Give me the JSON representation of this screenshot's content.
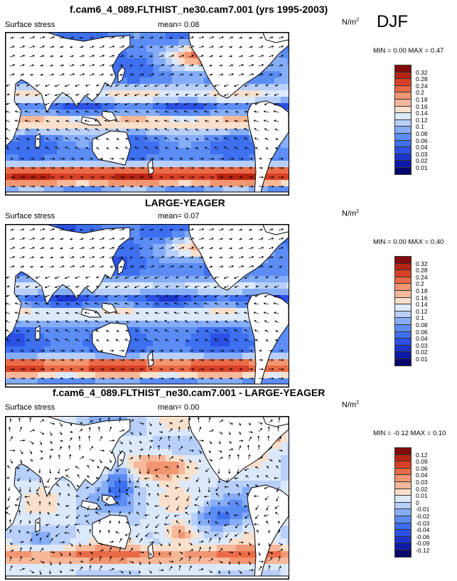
{
  "page": {
    "season": "DJF"
  },
  "chart_data": [
    {
      "type": "heatmap",
      "title": "f.cam6_4_089.FLTHIST_ne30.cam7.001 (yrs 1995-2003)",
      "variable": "Surface stress",
      "mean": "mean=  0.08",
      "units": "N/m",
      "units_exp": "2",
      "minmax": "MIN =  0.00 MAX =  0.47",
      "levels": [
        "0.01",
        "0.02",
        "0.03",
        "0.04",
        "0.06",
        "0.08",
        "0.1",
        "0.12",
        "0.14",
        "0.16",
        "0.18",
        "0.2",
        "0.24",
        "0.28",
        "0.32"
      ],
      "colors": [
        "#08066b",
        "#0d1aa6",
        "#1b34cc",
        "#2a50e4",
        "#3d6fef",
        "#5c8df5",
        "#86adf8",
        "#b7cff9",
        "#dce9fb",
        "#f9e0cc",
        "#f7b89a",
        "#f29571",
        "#ea6a46",
        "#d84126",
        "#b82412",
        "#800b0b"
      ],
      "quantity": "wind stress magnitude (shaded) with vectors"
    },
    {
      "type": "heatmap",
      "title": "LARGE-YEAGER",
      "variable": "Surface stress",
      "mean": "mean=  0.07",
      "units": "N/m",
      "units_exp": "2",
      "minmax": "MIN =  0.00 MAX =  0.40",
      "levels": [
        "0.01",
        "0.02",
        "0.03",
        "0.04",
        "0.06",
        "0.08",
        "0.1",
        "0.12",
        "0.14",
        "0.16",
        "0.18",
        "0.2",
        "0.24",
        "0.28",
        "0.32"
      ],
      "colors": [
        "#08066b",
        "#0d1aa6",
        "#1b34cc",
        "#2a50e4",
        "#3d6fef",
        "#5c8df5",
        "#86adf8",
        "#b7cff9",
        "#dce9fb",
        "#f9e0cc",
        "#f7b89a",
        "#f29571",
        "#ea6a46",
        "#d84126",
        "#b82412",
        "#800b0b"
      ],
      "quantity": "wind stress magnitude (shaded) with vectors"
    },
    {
      "type": "heatmap",
      "title": "f.cam6_4_089.FLTHIST_ne30.cam7.001 - LARGE-YEAGER",
      "variable": "Surface stress",
      "mean": "mean=  0.00",
      "units": "N/m",
      "units_exp": "2",
      "minmax": "MIN = -0.12 MAX =  0.10",
      "levels": [
        "-0.12",
        "-0.09",
        "-0.06",
        "-0.04",
        "-0.03",
        "-0.02",
        "-0.01",
        "0",
        "0.01",
        "0.02",
        "0.03",
        "0.04",
        "0.06",
        "0.09",
        "0.12"
      ],
      "colors": [
        "#08066b",
        "#0d1aa6",
        "#1b34cc",
        "#2a50e4",
        "#3d6fef",
        "#5c8df5",
        "#86adf8",
        "#b7cff9",
        "#dce9fb",
        "#f9e0cc",
        "#f7b89a",
        "#f29571",
        "#ea6a46",
        "#d84126",
        "#b82412",
        "#800b0b"
      ],
      "quantity": "difference in wind stress magnitude (shaded) with difference vectors"
    }
  ]
}
